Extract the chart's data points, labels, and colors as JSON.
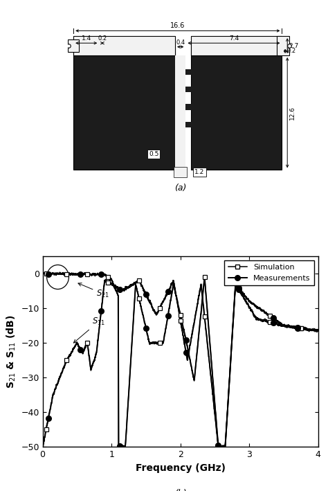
{
  "fig_width": 4.74,
  "fig_height": 7.09,
  "dpi": 100,
  "background_color": "#ffffff",
  "panel_b": {
    "xlabel": "Frequency (GHz)",
    "ylabel": "S$_{21}$ & S$_{11}$ (dB)",
    "xlim": [
      0,
      4
    ],
    "ylim": [
      -50,
      5
    ],
    "yticks": [
      0,
      -10,
      -20,
      -30,
      -40,
      -50
    ],
    "xticks": [
      0,
      1,
      2,
      3,
      4
    ],
    "label_fontsize": 10,
    "tick_fontsize": 9
  }
}
